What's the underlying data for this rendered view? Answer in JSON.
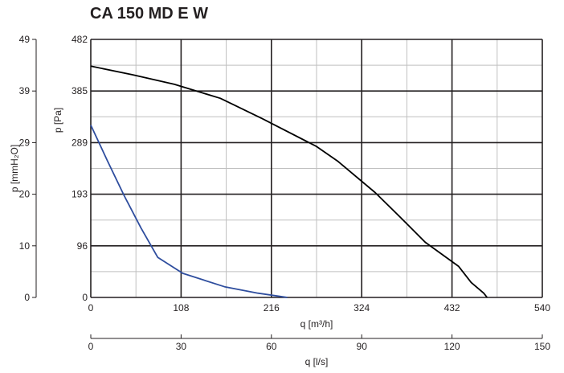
{
  "chart_data": {
    "type": "line",
    "title": "CA 150 MD E W",
    "y_left_label": "p [mmH₂O]",
    "y_right_label": "p [Pa]",
    "x_label": "q [m³/h]",
    "x2_label": "q [l/s]",
    "y_mmH2O_ticks": [
      "0",
      "10",
      "20",
      "29",
      "39",
      "49"
    ],
    "y_Pa_ticks": [
      "0",
      "96",
      "193",
      "289",
      "385",
      "482"
    ],
    "x_m3h_ticks": [
      "0",
      "108",
      "216",
      "324",
      "432",
      "540"
    ],
    "x_ls_ticks": [
      "0",
      "30",
      "60",
      "90",
      "120",
      "150"
    ],
    "xlim": [
      0,
      540
    ],
    "ylim": [
      0,
      482
    ],
    "grid": true,
    "series": [
      {
        "color": "#000000",
        "points": [
          [
            0,
            432
          ],
          [
            50,
            416
          ],
          [
            100,
            398
          ],
          [
            155,
            372
          ],
          [
            205,
            334
          ],
          [
            270,
            282
          ],
          [
            295,
            255
          ],
          [
            340,
            196
          ],
          [
            370,
            150
          ],
          [
            400,
            103
          ],
          [
            440,
            58
          ],
          [
            455,
            28
          ],
          [
            470,
            8
          ],
          [
            474,
            0
          ]
        ]
      },
      {
        "color": "#2e4d9e",
        "points": [
          [
            0,
            322
          ],
          [
            20,
            255
          ],
          [
            40,
            190
          ],
          [
            60,
            130
          ],
          [
            80,
            75
          ],
          [
            110,
            45
          ],
          [
            160,
            20
          ],
          [
            200,
            8
          ],
          [
            235,
            0
          ]
        ]
      }
    ]
  }
}
